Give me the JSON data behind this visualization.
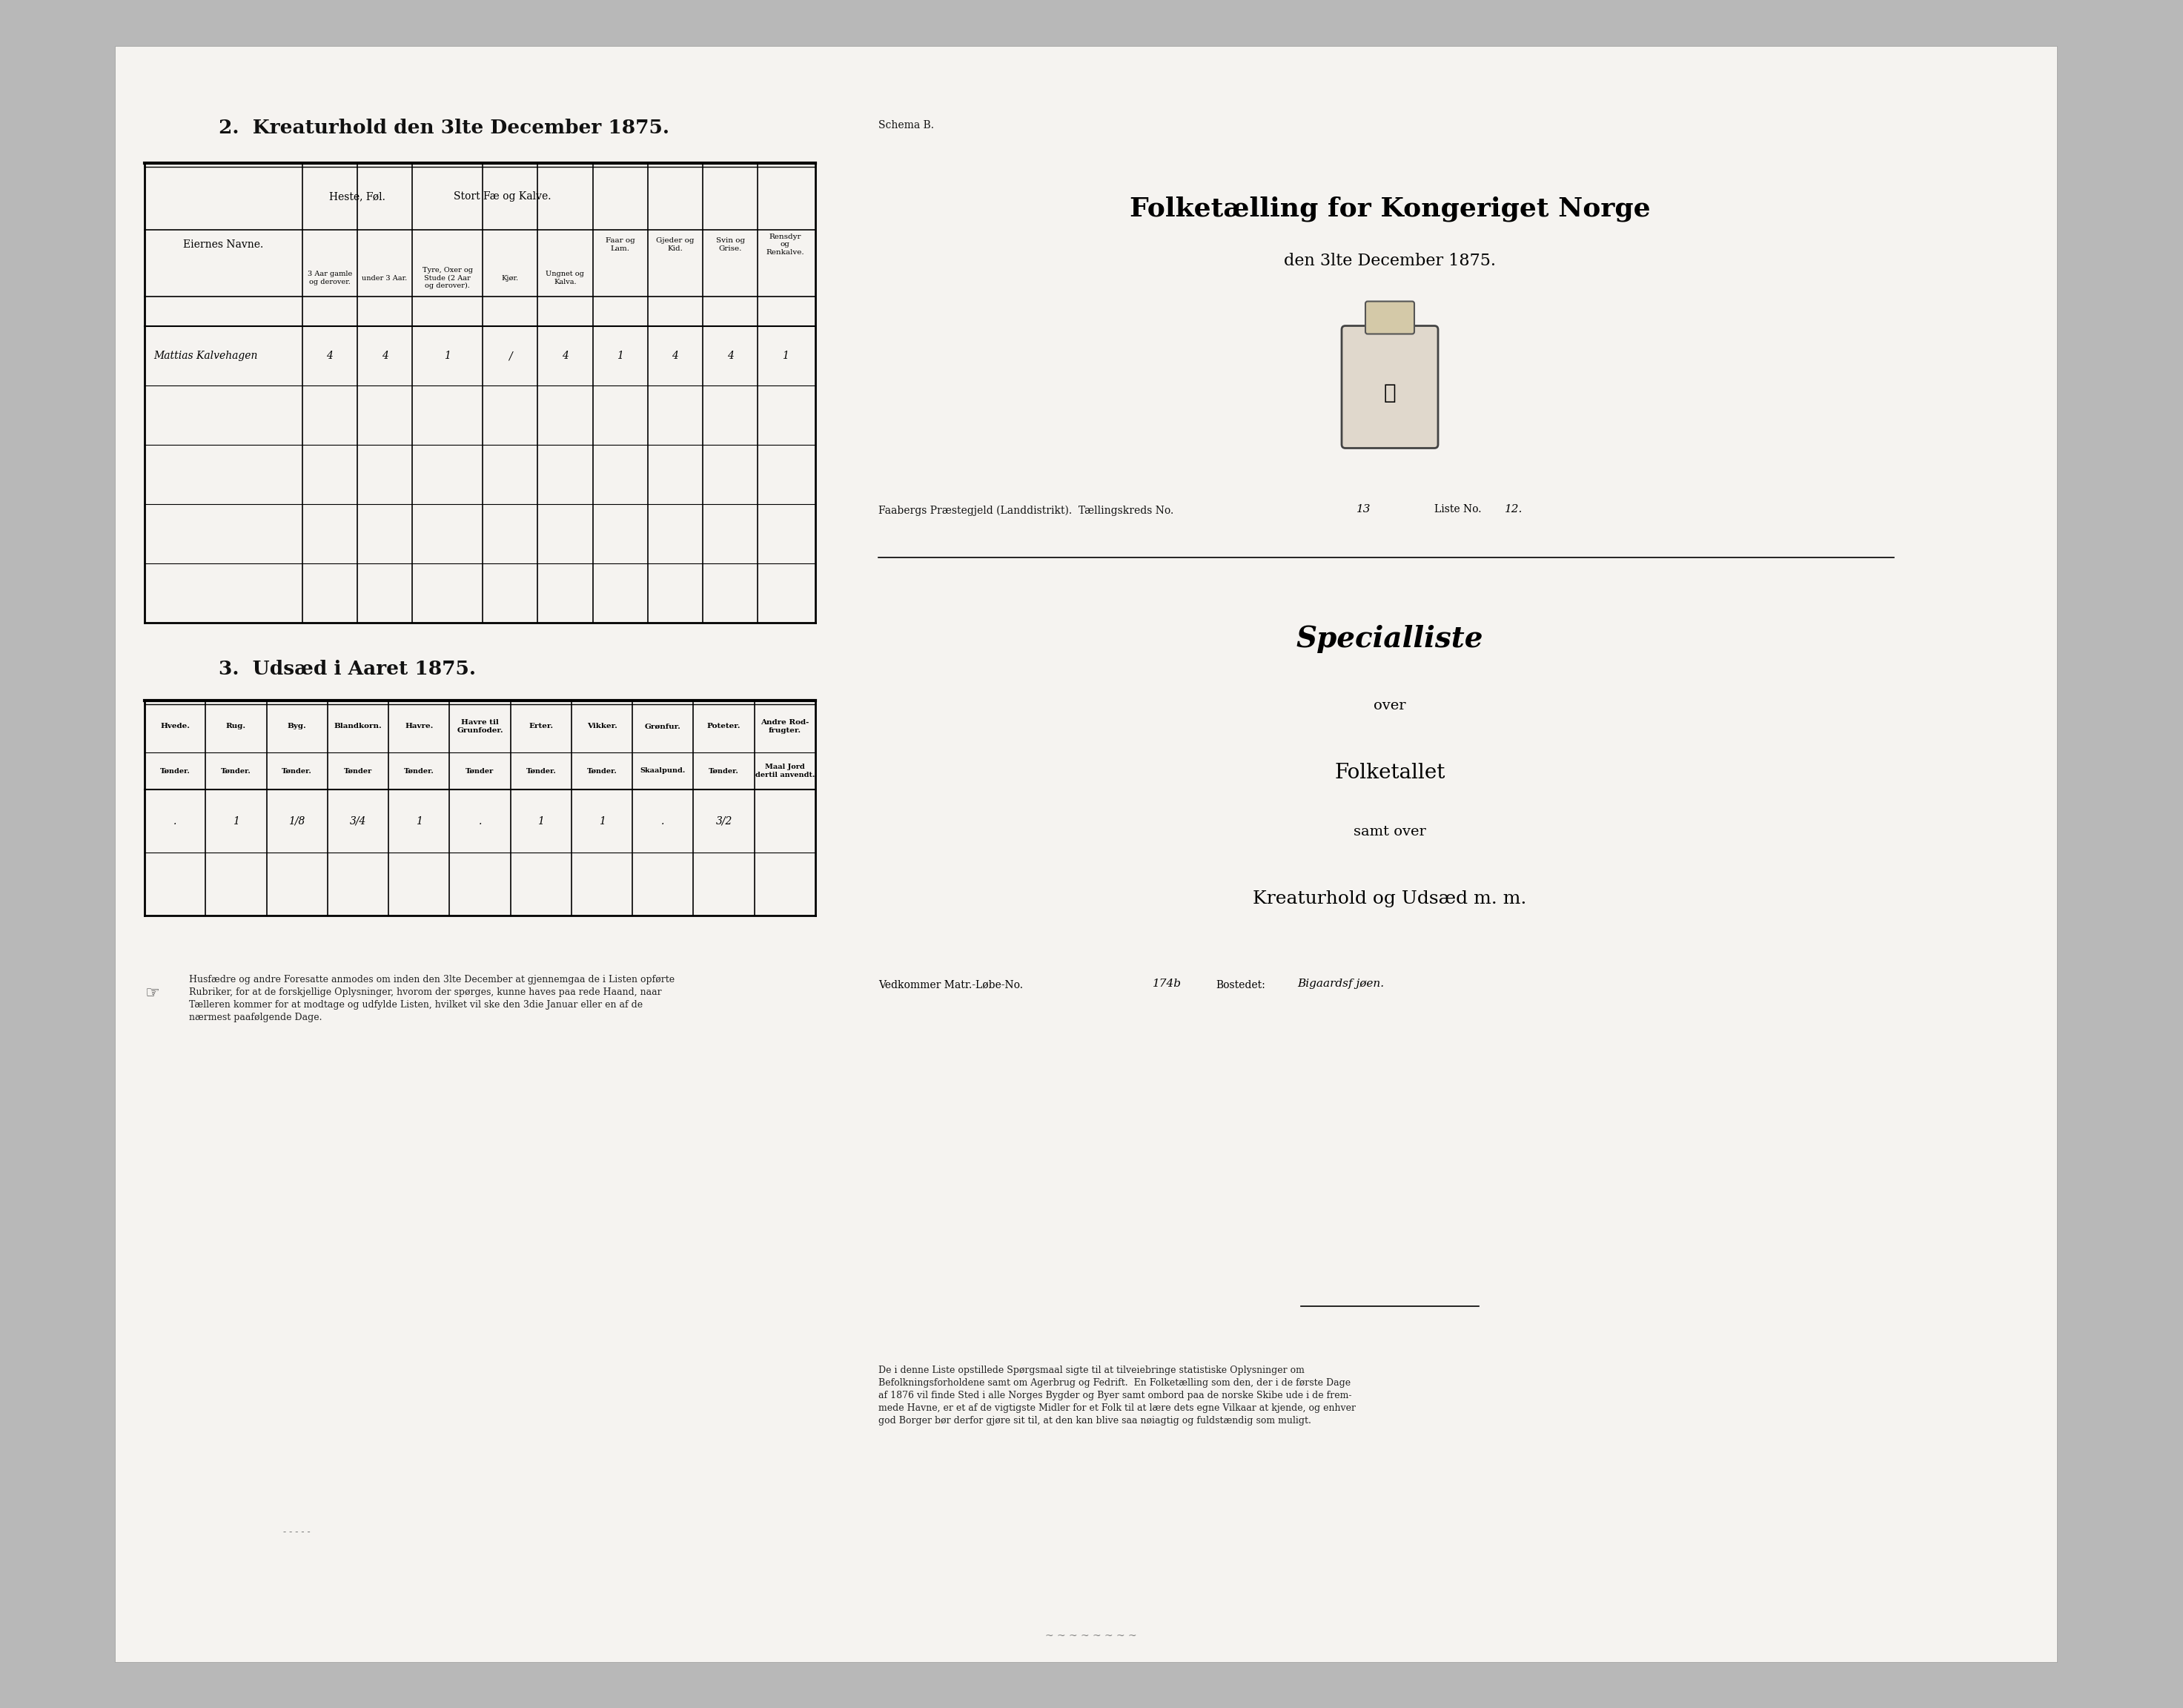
{
  "page_bg": "#b8b8b8",
  "paper_bg": "#f5f3f0",
  "section2_title": "2.  Kreaturhold den 3lte December 1875.",
  "section3_title": "3.  Udsæd i Aaret 1875.",
  "schema_b": "Schema B.",
  "main_title_line1": "Folketælling for Kongeriget Norge",
  "main_title_line2": "den 3lte December 1875.",
  "sub_title1": "Specialliste",
  "sub_title2": "over",
  "sub_title3": "Folketallet",
  "sub_title4": "samt over",
  "sub_title5": "Kreaturhold og Udsæd m. m.",
  "matr_label": "Vedkommer Matr.-Løbe-No.",
  "matr_no": "174b",
  "bostedet_label": "Bostedet:",
  "bostedet_val": "Bigaardsf jøen.",
  "tael_text": "Faabergs Præstegjeld (Landdistrikt).  Tællingskreds No.",
  "tael_no": "13",
  "liste_label": "Liste No.",
  "liste_no": "12.",
  "kreat_name": "Mattias Kalvehagen",
  "kreat_values": [
    "4",
    "4",
    "1",
    "/",
    "4",
    "1",
    "4",
    "4",
    "1"
  ],
  "udsaed_values": [
    ".",
    "1",
    "1/8",
    "3/4",
    "1",
    ".",
    "1",
    "1",
    ".",
    "3/2",
    ""
  ],
  "note_text1": "Husfædre og andre Foresatte anmodes om inden den 3lte December at gjennemgaa de i Listen opførte\nRubriker, for at de forskjellige Oplysninger, hvorom der spørges, kunne haves paa rede Haand, naar\nTælleren kommer for at modtage og udfylde Listen, hvilket vil ske den 3die Januar eller en af de\nnærmest paafølgende Dage.",
  "note_text2": "De i denne Liste opstillede Spørgsmaal sigte til at tilveiebringe statistiske Oplysninger om\nBefolkningsforholdene samt om Agerbrug og Fedrift.  En Folketælling som den, der i de første Dage\naf 1876 vil finde Sted i alle Norges Bygder og Byer samt ombord paa de norske Skibe ude i de frem-\nmede Havne, er et af de vigtigste Midler for et Folk til at lære dets egne Vilkaar at kjende, og enhver\ngod Borger bør derfor gjøre sit til, at den kan blive saa nøiagtig og fuldstændig som muligt."
}
